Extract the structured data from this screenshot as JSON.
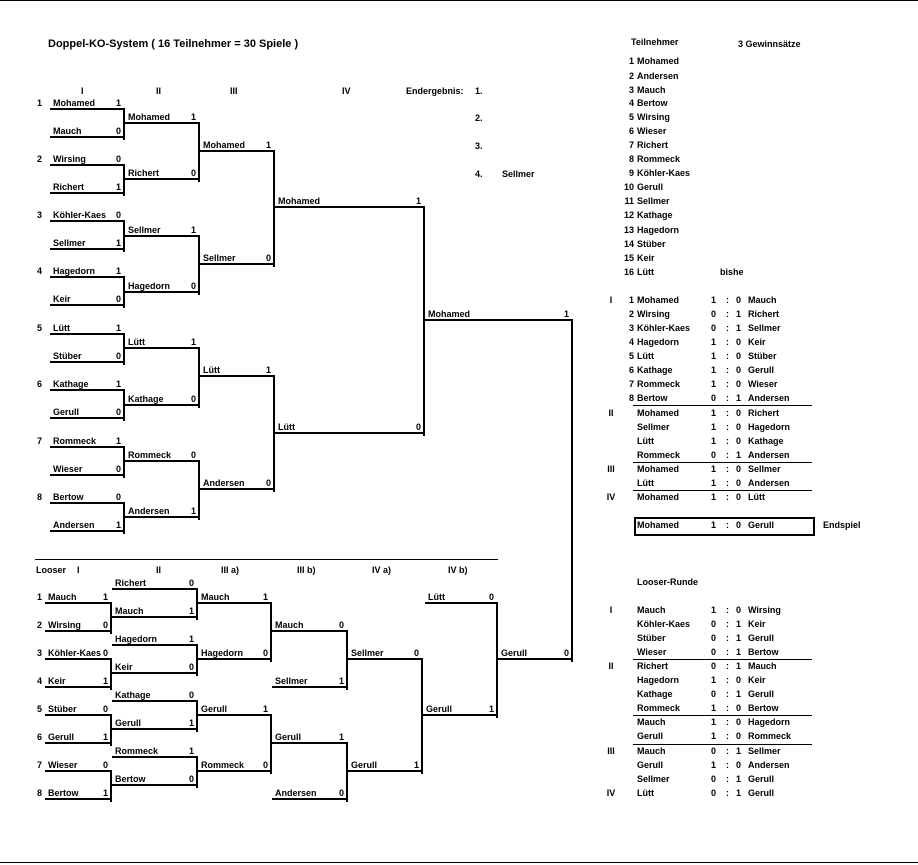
{
  "title": "Doppel-KO-System   ( 16 Teilnehmer = 30  Spiele )",
  "upper": {
    "headers": [
      "I",
      "II",
      "III",
      "IV"
    ],
    "endergebnis_label": "Endergebnis:",
    "placements": [
      {
        "rank": "1.",
        "name": ""
      },
      {
        "rank": "2.",
        "name": ""
      },
      {
        "rank": "3.",
        "name": ""
      },
      {
        "rank": "4.",
        "name": "Sellmer"
      }
    ],
    "rounds": [
      [
        {
          "seed": "1",
          "name": "Mohamed",
          "score": "1"
        },
        {
          "name": "Mauch",
          "score": "0"
        },
        {
          "seed": "2",
          "name": "Wirsing",
          "score": "0"
        },
        {
          "name": "Richert",
          "score": "1"
        },
        {
          "seed": "3",
          "name": "Köhler-Kaes",
          "score": "0"
        },
        {
          "name": "Sellmer",
          "score": "1"
        },
        {
          "seed": "4",
          "name": "Hagedorn",
          "score": "1"
        },
        {
          "name": "Keir",
          "score": "0"
        },
        {
          "seed": "5",
          "name": "Lütt",
          "score": "1"
        },
        {
          "name": "Stüber",
          "score": "0"
        },
        {
          "seed": "6",
          "name": "Kathage",
          "score": "1"
        },
        {
          "name": "Gerull",
          "score": "0"
        },
        {
          "seed": "7",
          "name": "Rommeck",
          "score": "1"
        },
        {
          "name": "Wieser",
          "score": "0"
        },
        {
          "seed": "8",
          "name": "Bertow",
          "score": "0"
        },
        {
          "name": "Andersen",
          "score": "1"
        }
      ],
      [
        {
          "name": "Mohamed",
          "score": "1"
        },
        {
          "name": "Richert",
          "score": "0"
        },
        {
          "name": "Sellmer",
          "score": "1"
        },
        {
          "name": "Hagedorn",
          "score": "0"
        },
        {
          "name": "Lütt",
          "score": "1"
        },
        {
          "name": "Kathage",
          "score": "0"
        },
        {
          "name": "Rommeck",
          "score": "0"
        },
        {
          "name": "Andersen",
          "score": "1"
        }
      ],
      [
        {
          "name": "Mohamed",
          "score": "1"
        },
        {
          "name": "Sellmer",
          "score": "0"
        },
        {
          "name": "Lütt",
          "score": "1"
        },
        {
          "name": "Andersen",
          "score": "0"
        }
      ],
      [
        {
          "name": "Mohamed",
          "score": "1"
        },
        {
          "name": "Lütt",
          "score": "0"
        }
      ],
      [
        {
          "name": "Mohamed",
          "score": "1"
        }
      ]
    ]
  },
  "looser": {
    "headers": [
      "Looser",
      "I",
      "II",
      "III a)",
      "III b)",
      "IV a)",
      "IV b)"
    ],
    "rounds": [
      [
        {
          "seed": "1",
          "name": "Mauch",
          "score": "1"
        },
        {
          "seed": "2",
          "name": "Wirsing",
          "score": "0"
        },
        {
          "seed": "3",
          "name": "Köhler-Kaes",
          "score": "0"
        },
        {
          "seed": "4",
          "name": "Keir",
          "score": "1"
        },
        {
          "seed": "5",
          "name": "Stüber",
          "score": "0"
        },
        {
          "seed": "6",
          "name": "Gerull",
          "score": "1"
        },
        {
          "seed": "7",
          "name": "Wieser",
          "score": "0"
        },
        {
          "seed": "8",
          "name": "Bertow",
          "score": "1"
        }
      ],
      [
        {
          "name": "Richert",
          "score": "0"
        },
        {
          "name": "Mauch",
          "score": "1"
        },
        {
          "name": "Hagedorn",
          "score": "1"
        },
        {
          "name": "Keir",
          "score": "0"
        },
        {
          "name": "Kathage",
          "score": "0"
        },
        {
          "name": "Gerull",
          "score": "1"
        },
        {
          "name": "Rommeck",
          "score": "1"
        },
        {
          "name": "Bertow",
          "score": "0"
        }
      ],
      [
        {
          "name": "Mauch",
          "score": "1"
        },
        {
          "name": "Hagedorn",
          "score": "0"
        },
        {
          "name": "Gerull",
          "score": "1"
        },
        {
          "name": "Rommeck",
          "score": "0"
        }
      ],
      [
        {
          "name": "Mauch",
          "score": "0"
        },
        {
          "name": "Sellmer",
          "score": "1"
        },
        {
          "name": "Gerull",
          "score": "1"
        },
        {
          "name": "Andersen",
          "score": "0"
        }
      ],
      [
        {
          "name": "Sellmer",
          "score": "0"
        },
        {
          "name": "Gerull",
          "score": "1"
        }
      ],
      [
        {
          "name": "Lütt",
          "score": "0"
        },
        {
          "name": "Gerull",
          "score": "1"
        }
      ],
      [
        {
          "name": "Gerull",
          "score": "0"
        }
      ]
    ]
  },
  "participants": {
    "title": "Teilnehmer",
    "sets": "3  Gewinnsätze",
    "note": "bishe",
    "list": [
      {
        "no": "1",
        "name": "Mohamed"
      },
      {
        "no": "2",
        "name": "Andersen"
      },
      {
        "no": "3",
        "name": "Mauch"
      },
      {
        "no": "4",
        "name": "Bertow"
      },
      {
        "no": "5",
        "name": "Wirsing"
      },
      {
        "no": "6",
        "name": "Wieser"
      },
      {
        "no": "7",
        "name": "Richert"
      },
      {
        "no": "8",
        "name": "Rommeck"
      },
      {
        "no": "9",
        "name": "Köhler-Kaes"
      },
      {
        "no": "10",
        "name": "Gerull"
      },
      {
        "no": "11",
        "name": "Sellmer"
      },
      {
        "no": "12",
        "name": "Kathage"
      },
      {
        "no": "13",
        "name": "Hagedorn"
      },
      {
        "no": "14",
        "name": "Stüber"
      },
      {
        "no": "15",
        "name": "Keir"
      },
      {
        "no": "16",
        "name": "Lütt"
      }
    ]
  },
  "results": {
    "rows": [
      {
        "round": "I",
        "no": "1",
        "p1": "Mohamed",
        "s1": "1",
        "sep": ":",
        "s2": "0",
        "p2": "Mauch"
      },
      {
        "round": "",
        "no": "2",
        "p1": "Wirsing",
        "s1": "0",
        "sep": ":",
        "s2": "1",
        "p2": "Richert"
      },
      {
        "round": "",
        "no": "3",
        "p1": "Köhler-Kaes",
        "s1": "0",
        "sep": ":",
        "s2": "1",
        "p2": "Sellmer"
      },
      {
        "round": "",
        "no": "4",
        "p1": "Hagedorn",
        "s1": "1",
        "sep": ":",
        "s2": "0",
        "p2": "Keir"
      },
      {
        "round": "",
        "no": "5",
        "p1": "Lütt",
        "s1": "1",
        "sep": ":",
        "s2": "0",
        "p2": "Stüber"
      },
      {
        "round": "",
        "no": "6",
        "p1": "Kathage",
        "s1": "1",
        "sep": ":",
        "s2": "0",
        "p2": "Gerull"
      },
      {
        "round": "",
        "no": "7",
        "p1": "Rommeck",
        "s1": "1",
        "sep": ":",
        "s2": "0",
        "p2": "Wieser"
      },
      {
        "round": "",
        "no": "8",
        "p1": "Bertow",
        "s1": "0",
        "sep": ":",
        "s2": "1",
        "p2": "Andersen"
      },
      {
        "round": "II",
        "no": "",
        "p1": "Mohamed",
        "s1": "1",
        "sep": ":",
        "s2": "0",
        "p2": "Richert"
      },
      {
        "round": "",
        "no": "",
        "p1": "Sellmer",
        "s1": "1",
        "sep": ":",
        "s2": "0",
        "p2": "Hagedorn"
      },
      {
        "round": "",
        "no": "",
        "p1": "Lütt",
        "s1": "1",
        "sep": ":",
        "s2": "0",
        "p2": "Kathage"
      },
      {
        "round": "",
        "no": "",
        "p1": "Rommeck",
        "s1": "0",
        "sep": ":",
        "s2": "1",
        "p2": "Andersen"
      },
      {
        "round": "III",
        "no": "",
        "p1": "Mohamed",
        "s1": "1",
        "sep": ":",
        "s2": "0",
        "p2": "Sellmer"
      },
      {
        "round": "",
        "no": "",
        "p1": "Lütt",
        "s1": "1",
        "sep": ":",
        "s2": "0",
        "p2": "Andersen"
      },
      {
        "round": "IV",
        "no": "",
        "p1": "Mohamed",
        "s1": "1",
        "sep": ":",
        "s2": "0",
        "p2": "Lütt"
      }
    ],
    "final": {
      "p1": "Mohamed",
      "s1": "1",
      "sep": ":",
      "s2": "0",
      "p2": "Gerull",
      "label": "Endspiel"
    }
  },
  "looser_results": {
    "title": "Looser-Runde",
    "rows": [
      {
        "round": "I",
        "p1": "Mauch",
        "s1": "1",
        "sep": ":",
        "s2": "0",
        "p2": "Wirsing"
      },
      {
        "round": "",
        "p1": "Köhler-Kaes",
        "s1": "0",
        "sep": ":",
        "s2": "1",
        "p2": "Keir"
      },
      {
        "round": "",
        "p1": "Stüber",
        "s1": "0",
        "sep": ":",
        "s2": "1",
        "p2": "Gerull"
      },
      {
        "round": "",
        "p1": "Wieser",
        "s1": "0",
        "sep": ":",
        "s2": "1",
        "p2": "Bertow"
      },
      {
        "round": "II",
        "p1": "Richert",
        "s1": "0",
        "sep": ":",
        "s2": "1",
        "p2": "Mauch"
      },
      {
        "round": "",
        "p1": "Hagedorn",
        "s1": "1",
        "sep": ":",
        "s2": "0",
        "p2": "Keir"
      },
      {
        "round": "",
        "p1": "Kathage",
        "s1": "0",
        "sep": ":",
        "s2": "1",
        "p2": "Gerull"
      },
      {
        "round": "",
        "p1": "Rommeck",
        "s1": "1",
        "sep": ":",
        "s2": "0",
        "p2": "Bertow"
      },
      {
        "round": "",
        "p1": "Mauch",
        "s1": "1",
        "sep": ":",
        "s2": "0",
        "p2": "Hagedorn"
      },
      {
        "round": "",
        "p1": "Gerull",
        "s1": "1",
        "sep": ":",
        "s2": "0",
        "p2": "Rommeck"
      },
      {
        "round": "III",
        "p1": "Mauch",
        "s1": "0",
        "sep": ":",
        "s2": "1",
        "p2": "Sellmer"
      },
      {
        "round": "",
        "p1": "Gerull",
        "s1": "1",
        "sep": ":",
        "s2": "0",
        "p2": "Andersen"
      },
      {
        "round": "",
        "p1": "Sellmer",
        "s1": "0",
        "sep": ":",
        "s2": "1",
        "p2": "Gerull"
      },
      {
        "round": "IV",
        "p1": "Lütt",
        "s1": "0",
        "sep": ":",
        "s2": "1",
        "p2": "Gerull"
      }
    ]
  }
}
